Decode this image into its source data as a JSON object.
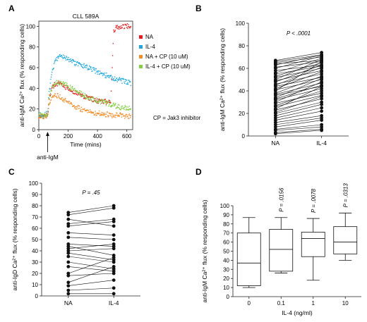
{
  "chart_data": [
    {
      "panel": "A",
      "type": "line",
      "title": "CLL 589A",
      "xlabel": "Time (mins)",
      "ylabel": "anti-IgM Ca²⁺ flux (% responding cells)",
      "xlim": [
        0,
        640
      ],
      "ylim": [
        0,
        105
      ],
      "xticks": [
        "0",
        "200",
        "400",
        "600"
      ],
      "yticks": [
        "0",
        "20",
        "40",
        "60",
        "80",
        "100"
      ],
      "annotations": {
        "arrow_label": "anti-IgM",
        "arrow_x": 60,
        "note": "CP = Jak3 inhibitor"
      },
      "legend_placement": "right",
      "series": [
        {
          "name": "NA",
          "color": "#e41a1c",
          "x": [
            0,
            40,
            60,
            70,
            90,
            110,
            130,
            150,
            170,
            200,
            250,
            300,
            350,
            400,
            450,
            490,
            500,
            510,
            530,
            560,
            600,
            630
          ],
          "y": [
            13,
            13,
            14,
            30,
            40,
            44,
            45,
            44,
            42,
            40,
            36,
            32,
            30,
            28,
            27,
            26,
            60,
            95,
            99,
            100,
            100,
            100
          ]
        },
        {
          "name": "IL-4",
          "color": "#1fa8e0",
          "x": [
            0,
            40,
            60,
            70,
            90,
            110,
            130,
            150,
            170,
            200,
            250,
            300,
            350,
            400,
            450,
            500,
            550,
            600,
            630
          ],
          "y": [
            14,
            14,
            16,
            35,
            55,
            65,
            70,
            71,
            70,
            68,
            64,
            62,
            59,
            56,
            53,
            50,
            48,
            46,
            45
          ]
        },
        {
          "name": "NA + CP (10 uM)",
          "color": "#f28c28",
          "x": [
            0,
            40,
            60,
            70,
            90,
            110,
            130,
            150,
            170,
            200,
            250,
            300,
            350,
            400,
            450,
            500,
            550,
            600,
            630
          ],
          "y": [
            13,
            13,
            13,
            22,
            30,
            33,
            33,
            31,
            29,
            26,
            22,
            19,
            17,
            16,
            15,
            14,
            14,
            13,
            13
          ]
        },
        {
          "name": "IL-4 + CP (10 uM)",
          "color": "#7fcf3f",
          "x": [
            0,
            40,
            60,
            70,
            90,
            110,
            130,
            150,
            170,
            200,
            250,
            300,
            350,
            400,
            450,
            500,
            550,
            600,
            630
          ],
          "y": [
            14,
            14,
            15,
            30,
            40,
            44,
            46,
            45,
            44,
            42,
            38,
            34,
            30,
            28,
            26,
            24,
            22,
            21,
            20
          ]
        }
      ]
    },
    {
      "panel": "B",
      "type": "line",
      "title": "",
      "subtitle": "P < .0001",
      "xlabel": "",
      "ylabel": "anti-IgM Ca²⁺ flux (% responding cells)",
      "categories": [
        "NA",
        "IL-4"
      ],
      "ylim": [
        0,
        100
      ],
      "yticks": [
        "0",
        "20",
        "40",
        "60",
        "80",
        "100"
      ],
      "pairs": [
        [
          67,
          74
        ],
        [
          66,
          72
        ],
        [
          65,
          70
        ],
        [
          64,
          67
        ],
        [
          63,
          72
        ],
        [
          61,
          66
        ],
        [
          60,
          71
        ],
        [
          58,
          63
        ],
        [
          56,
          69
        ],
        [
          55,
          62
        ],
        [
          53,
          65
        ],
        [
          52,
          60
        ],
        [
          50,
          68
        ],
        [
          49,
          58
        ],
        [
          48,
          63
        ],
        [
          46,
          55
        ],
        [
          45,
          61
        ],
        [
          44,
          52
        ],
        [
          42,
          57
        ],
        [
          41,
          50
        ],
        [
          40,
          66
        ],
        [
          38,
          53
        ],
        [
          37,
          47
        ],
        [
          36,
          44
        ],
        [
          34,
          51
        ],
        [
          33,
          45
        ],
        [
          32,
          42
        ],
        [
          30,
          48
        ],
        [
          29,
          38
        ],
        [
          27,
          40
        ],
        [
          26,
          36
        ],
        [
          24,
          44
        ],
        [
          23,
          33
        ],
        [
          21,
          35
        ],
        [
          20,
          30
        ],
        [
          18,
          28
        ],
        [
          16,
          25
        ],
        [
          14,
          22
        ],
        [
          12,
          18
        ],
        [
          10,
          16
        ],
        [
          8,
          14
        ],
        [
          6,
          10
        ],
        [
          5,
          8
        ],
        [
          3,
          6
        ],
        [
          2,
          5
        ]
      ]
    },
    {
      "panel": "C",
      "type": "line",
      "title": "",
      "subtitle": "P = .45",
      "xlabel": "",
      "ylabel": "anti-IgD Ca²⁺ flux (% responding cells)",
      "categories": [
        "NA",
        "IL-4"
      ],
      "ylim": [
        0,
        100
      ],
      "yticks": [
        "0",
        "10",
        "20",
        "30",
        "40",
        "50",
        "60",
        "70",
        "80",
        "90",
        "100"
      ],
      "pairs": [
        [
          74,
          80
        ],
        [
          72,
          78
        ],
        [
          68,
          62
        ],
        [
          64,
          68
        ],
        [
          62,
          66
        ],
        [
          56,
          54
        ],
        [
          52,
          50
        ],
        [
          46,
          44
        ],
        [
          44,
          36
        ],
        [
          42,
          46
        ],
        [
          40,
          42
        ],
        [
          38,
          32
        ],
        [
          35,
          30
        ],
        [
          30,
          24
        ],
        [
          26,
          22
        ],
        [
          20,
          34
        ],
        [
          18,
          20
        ],
        [
          12,
          26
        ],
        [
          9,
          14
        ],
        [
          5,
          7
        ],
        [
          2,
          2
        ]
      ]
    },
    {
      "panel": "D",
      "type": "box",
      "title": "",
      "xlabel": "IL-4 (ng/ml)",
      "ylabel": "anti-IgM Ca²⁺ flux (% responding cells)",
      "categories": [
        "0",
        "0.1",
        "1",
        "10"
      ],
      "ylim": [
        0,
        100
      ],
      "yticks": [
        "0",
        "10",
        "20",
        "30",
        "40",
        "50",
        "60",
        "70",
        "80",
        "90",
        "100"
      ],
      "pvalues": [
        "",
        "P = .0156",
        "P = .0078",
        "P = .0313"
      ],
      "boxes": [
        {
          "min": 10,
          "q1": 12,
          "median": 37,
          "q3": 70,
          "max": 87
        },
        {
          "min": 26,
          "q1": 28,
          "median": 52,
          "q3": 74,
          "max": 87
        },
        {
          "min": 18,
          "q1": 44,
          "median": 64,
          "q3": 71,
          "max": 86
        },
        {
          "min": 40,
          "q1": 47,
          "median": 60,
          "q3": 77,
          "max": 92
        }
      ]
    }
  ]
}
